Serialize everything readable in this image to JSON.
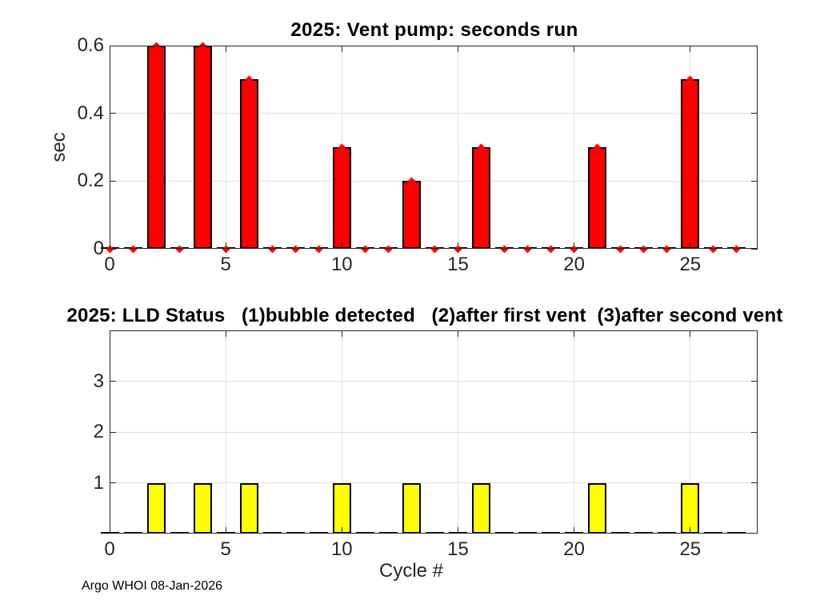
{
  "figure": {
    "background": "#ffffff",
    "axis_color": "#262626",
    "grid_color": "#dedede",
    "text_color": "#262626"
  },
  "chart_data": [
    {
      "type": "bar",
      "title": "2025: Vent pump: seconds run",
      "ylabel": "sec",
      "bar_color": "#ff0000",
      "bar_edge_color": "#000000",
      "marker": {
        "shape": "diamond",
        "color": "#ff0000"
      },
      "xlim": [
        0,
        27.9
      ],
      "ylim": [
        0,
        0.6
      ],
      "bar_width": 0.8,
      "grid": true,
      "grid_x": [
        5,
        10,
        15,
        20,
        25
      ],
      "grid_y": [
        0.2,
        0.4
      ],
      "xtick_values": [
        0,
        5,
        10,
        15,
        20,
        25
      ],
      "xtick_labels": [
        "0",
        "5",
        "10",
        "15",
        "20",
        "25"
      ],
      "ytick_values": [
        0,
        0.2,
        0.4,
        0.6
      ],
      "ytick_labels": [
        "0",
        "0.2",
        "0.4",
        "0.6"
      ],
      "x": [
        0,
        1,
        2,
        3,
        4,
        5,
        6,
        7,
        8,
        9,
        10,
        11,
        12,
        13,
        14,
        15,
        16,
        17,
        18,
        19,
        20,
        21,
        22,
        23,
        24,
        25,
        26,
        27
      ],
      "values": [
        0,
        0,
        0.6,
        0,
        0.6,
        0,
        0.5,
        0,
        0,
        0,
        0.3,
        0,
        0,
        0.2,
        0,
        0,
        0.3,
        0,
        0,
        0,
        0,
        0.3,
        0,
        0,
        0,
        0.5,
        0,
        0
      ]
    },
    {
      "type": "bar",
      "title": "2025: LLD Status   (1)bubble detected   (2)after first vent  (3)after second vent",
      "xlabel": "Cycle #",
      "bar_color": "#ffff00",
      "bar_edge_color": "#000000",
      "marker": null,
      "xlim": [
        0,
        27.9
      ],
      "ylim": [
        0,
        4
      ],
      "bar_width": 0.8,
      "grid": true,
      "grid_x": [
        5,
        10,
        15,
        20,
        25
      ],
      "grid_y": [
        1,
        2,
        3
      ],
      "xtick_values": [
        0,
        5,
        10,
        15,
        20,
        25
      ],
      "xtick_labels": [
        "0",
        "5",
        "10",
        "15",
        "20",
        "25"
      ],
      "ytick_values": [
        1,
        2,
        3
      ],
      "ytick_labels": [
        "1",
        "2",
        "3"
      ],
      "x": [
        0,
        1,
        2,
        3,
        4,
        5,
        6,
        7,
        8,
        9,
        10,
        11,
        12,
        13,
        14,
        15,
        16,
        17,
        18,
        19,
        20,
        21,
        22,
        23,
        24,
        25,
        26,
        27
      ],
      "values": [
        0,
        0,
        1,
        0,
        1,
        0,
        1,
        0,
        0,
        0,
        1,
        0,
        0,
        1,
        0,
        0,
        1,
        0,
        0,
        0,
        0,
        1,
        0,
        0,
        0,
        1,
        0,
        0
      ]
    }
  ],
  "footer": {
    "text": "Argo WHOI 08-Jan-2026"
  }
}
